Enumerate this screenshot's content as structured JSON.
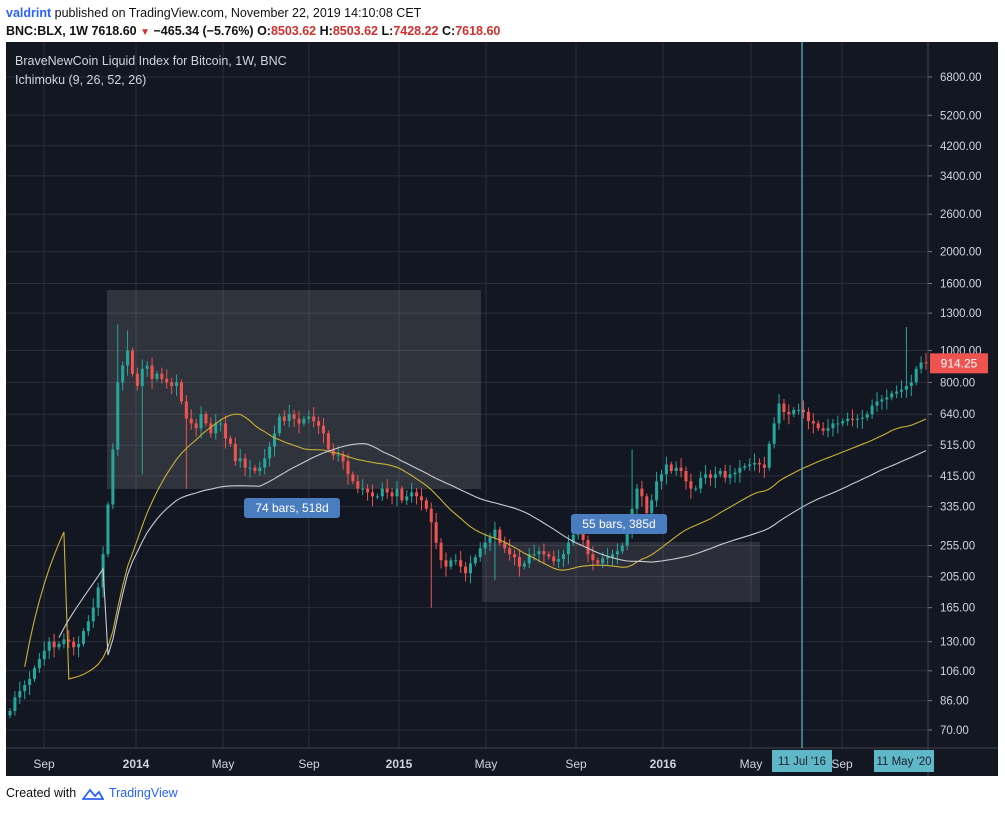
{
  "header": {
    "author": "valdrint",
    "published_text": "published on TradingView.com, November 22, 2019 14:10:08 CET",
    "symbol_line": "BNC:BLX, 1W",
    "last": "7618.60",
    "change": "−465.34 (−5.76%)",
    "open_label": "O:",
    "open": "8503.62",
    "high_label": "H:",
    "high": "8503.62",
    "low_label": "L:",
    "low": "7428.22",
    "close_label": "C:",
    "close": "7618.60"
  },
  "legend": {
    "title": "BraveNewCoin Liquid Index for Bitcoin, 1W, BNC",
    "indicator": "Ichimoku (9, 26, 52, 26)"
  },
  "footer": {
    "created_with": "Created with",
    "brand": "TradingView"
  },
  "colors": {
    "background": "#131722",
    "grid": "#2a2e39",
    "up": "#26a69a",
    "down": "#ef5350",
    "lagging_line": "#c9b037",
    "leading_line": "#c8cad0",
    "box": "#ffffff",
    "label_bg": "#4a7cc0",
    "marker_bg": "#5fb8c8",
    "price_label_bg": "#ef5350"
  },
  "chart_data": {
    "type": "candlestick",
    "title": "BraveNewCoin Liquid Index for Bitcoin, 1W, BNC",
    "y_scale": "log",
    "ylim": [
      60,
      7000
    ],
    "y_ticks": [
      "6800.00",
      "5200.00",
      "4200.00",
      "3400.00",
      "2600.00",
      "2000.00",
      "1600.00",
      "1300.00",
      "1000.00",
      "800.00",
      "640.00",
      "515.00",
      "415.00",
      "335.00",
      "255.00",
      "205.00",
      "165.00",
      "130.00",
      "106.00",
      "86.00",
      "70.00"
    ],
    "x_ticks": [
      "Sep",
      "2014",
      "May",
      "Sep",
      "2015",
      "May",
      "Sep",
      "2016",
      "May",
      "Sep"
    ],
    "x_markers": [
      "11 Jul '16",
      "11 May '20"
    ],
    "current_price_label": "914.25",
    "annotations": [
      {
        "text": "74 bars, 518d"
      },
      {
        "text": "55 bars, 385d"
      }
    ],
    "regions": [
      {
        "from": "Nov 2013",
        "to": "Apr 2015",
        "low": 350,
        "high": 1350
      },
      {
        "from": "Apr 2015",
        "to": "Jun 2016",
        "low": 165,
        "high": 255
      }
    ],
    "series": [
      {
        "name": "BLX weekly",
        "kind": "candles",
        "close": [
          80,
          88,
          92,
          96,
          100,
          108,
          115,
          122,
          130,
          125,
          128,
          132,
          130,
          125,
          128,
          140,
          150,
          165,
          190,
          240,
          340,
          500,
          800,
          900,
          1000,
          850,
          780,
          880,
          900,
          820,
          850,
          820,
          800,
          780,
          800,
          700,
          620,
          600,
          580,
          640,
          600,
          560,
          600,
          600,
          540,
          520,
          460,
          470,
          440,
          440,
          430,
          440,
          470,
          510,
          560,
          630,
          610,
          640,
          620,
          600,
          620,
          630,
          610,
          590,
          560,
          500,
          480,
          480,
          460,
          420,
          400,
          380,
          380,
          370,
          360,
          360,
          380,
          370,
          360,
          380,
          350,
          360,
          370,
          360,
          350,
          330,
          300,
          260,
          230,
          220,
          230,
          230,
          220,
          210,
          225,
          235,
          250,
          260,
          270,
          285,
          260,
          250,
          240,
          235,
          220,
          225,
          240,
          240,
          245,
          240,
          236,
          228,
          232,
          240,
          260,
          275,
          290,
          265,
          240,
          230,
          225,
          233,
          235,
          240,
          245,
          255,
          280,
          330,
          380,
          360,
          320,
          350,
          400,
          420,
          450,
          430,
          440,
          430,
          400,
          380,
          380,
          410,
          420,
          410,
          420,
          430,
          410,
          420,
          425,
          440,
          445,
          450,
          455,
          450,
          440,
          520,
          600,
          690,
          650,
          640,
          660,
          660,
          650,
          610,
          600,
          580,
          570,
          580,
          600,
          600,
          610,
          620,
          615,
          620,
          625,
          640,
          680,
          700,
          710,
          720,
          740,
          750,
          760,
          780,
          800,
          880,
          920,
          914.25
        ],
        "interval": "1W",
        "start": "Aug 2013",
        "end": "Jun 2016"
      },
      {
        "name": "Ichimoku line 1",
        "kind": "line",
        "color_key": "lagging_line"
      },
      {
        "name": "Ichimoku line 2",
        "kind": "line",
        "color_key": "leading_line"
      }
    ]
  }
}
